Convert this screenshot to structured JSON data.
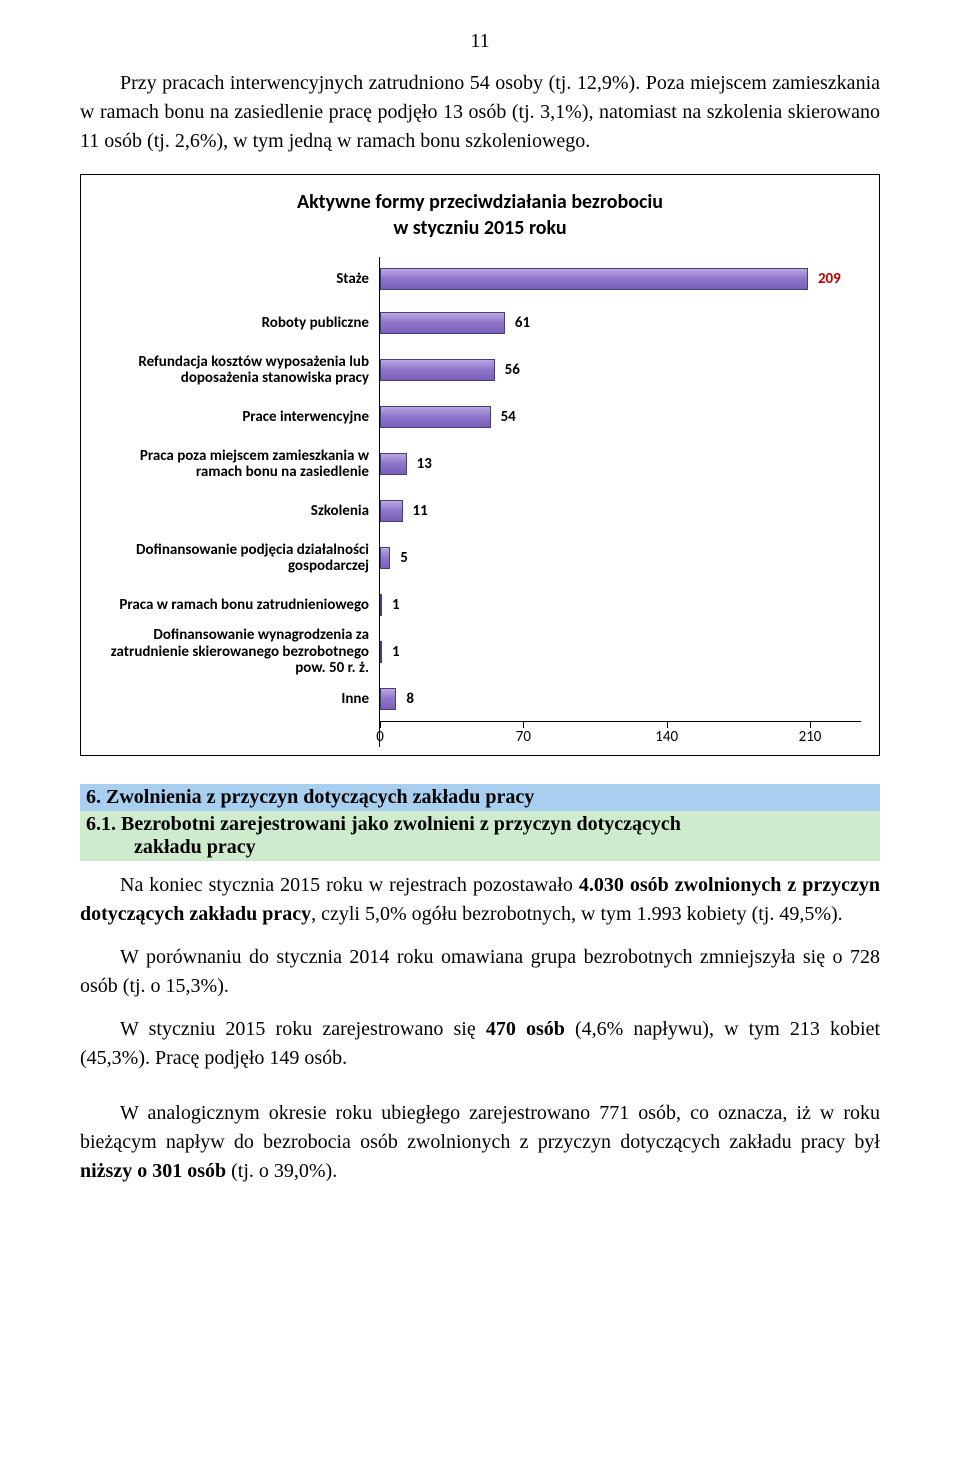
{
  "pageNumber": "11",
  "para1": "Przy pracach interwencyjnych zatrudniono 54 osoby (tj. 12,9%). Poza miejscem zamieszkania w ramach bonu na zasiedlenie pracę podjęło 13 osób (tj. 3,1%), natomiast na szkolenia skierowano 11 osób (tj. 2,6%), w tym jedną w ramach bonu szkoleniowego.",
  "chart": {
    "type": "bar-horizontal",
    "titleLine1": "Aktywne formy przeciwdziałania bezrobociu",
    "titleLine2": "w  styczniu 2015 roku",
    "plotWidthPx": 430,
    "xmax": 210,
    "ticks": [
      0,
      70,
      140,
      210
    ],
    "barColorTop": "#b9a7e1",
    "barColorMid": "#8e74c9",
    "barColorBottom": "#7a5fb8",
    "barBorder": "#4a3b7a",
    "valueColorNormal": "#000000",
    "valueColorHighlight": "#c00000",
    "rows": [
      {
        "label": "Staże",
        "value": 209,
        "highlight": true
      },
      {
        "label": "Roboty publiczne",
        "value": 61
      },
      {
        "label": "Refundacja kosztów wyposażenia lub doposażenia stanowiska pracy",
        "value": 56,
        "tall": true
      },
      {
        "label": "Prace interwencyjne",
        "value": 54
      },
      {
        "label": "Praca poza miejscem zamieszkania w ramach bonu na zasiedlenie",
        "value": 13,
        "tall": true
      },
      {
        "label": "Szkolenia",
        "value": 11
      },
      {
        "label": "Dofinansowanie podjęcia działalności gospodarczej",
        "value": 5,
        "tall": true
      },
      {
        "label": "Praca w ramach bonu zatrudnieniowego",
        "value": 1
      },
      {
        "label": "Dofinansowanie wynagrodzenia za zatrudnienie skierowanego bezrobotnego pow. 50 r. ż.",
        "value": 1,
        "tall": true
      },
      {
        "label": "Inne",
        "value": 8
      }
    ]
  },
  "sec6": "6. Zwolnienia z przyczyn dotyczących zakładu pracy",
  "sec61a": "6.1. Bezrobotni zarejestrowani jako zwolnieni z przyczyn dotyczących",
  "sec61b": "zakładu pracy",
  "p2a": "Na koniec stycznia 2015 roku w rejestrach pozostawało ",
  "p2b": "4.030 osób zwolnionych z przyczyn dotyczących zakładu pracy",
  "p2c": ", czyli 5,0% ogółu bezrobotnych, w tym 1.993 kobiety (tj. 49,5%).",
  "p3": "W porównaniu do stycznia 2014 roku omawiana grupa bezrobotnych zmniejszyła się o 728 osób (tj. o 15,3%).",
  "p4a": "W styczniu 2015 roku zarejestrowano się ",
  "p4b": "470 osób",
  "p4c": " (4,6% napływu), w tym 213 kobiet (45,3%). Pracę podjęło 149 osób.",
  "p5a": "W analogicznym okresie roku ubiegłego zarejestrowano 771 osób, co oznacza, iż w roku bieżącym napływ do bezrobocia osób zwolnionych z przyczyn dotyczących zakładu pracy był ",
  "p5b": "niższy o 301 osób",
  "p5c": " (tj. o 39,0%)."
}
